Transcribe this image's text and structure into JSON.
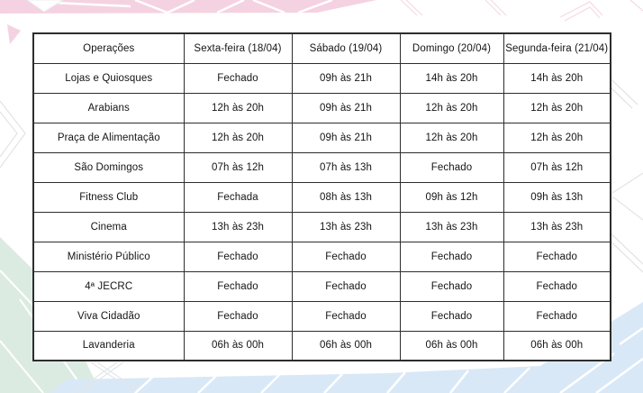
{
  "table": {
    "columns": [
      "Operações",
      "Sexta-feira (18/04)",
      "Sábado (19/04)",
      "Domingo (20/04)",
      "Segunda-feira (21/04)"
    ],
    "rows": [
      {
        "name": "Lojas e Quiosques",
        "values": [
          "Fechado",
          "09h às 21h",
          "14h às 20h",
          "14h às 20h"
        ]
      },
      {
        "name": "Arabians",
        "values": [
          "12h às 20h",
          "09h às 21h",
          "12h às 20h",
          "12h às 20h"
        ]
      },
      {
        "name": "Praça de Alimentação",
        "values": [
          "12h às 20h",
          "09h às 21h",
          "12h às 20h",
          "12h às 20h"
        ]
      },
      {
        "name": "São Domingos",
        "values": [
          "07h às 12h",
          "07h às 13h",
          "Fechado",
          "07h às 12h"
        ]
      },
      {
        "name": "Fitness Club",
        "values": [
          "Fechada",
          "08h às 13h",
          "09h às 12h",
          "09h às 13h"
        ]
      },
      {
        "name": "Cinema",
        "values": [
          "13h às 23h",
          "13h às 23h",
          "13h às 23h",
          "13h às 23h"
        ]
      },
      {
        "name": "Ministério Público",
        "values": [
          "Fechado",
          "Fechado",
          "Fechado",
          "Fechado"
        ]
      },
      {
        "name": "4ª JECRC",
        "values": [
          "Fechado",
          "Fechado",
          "Fechado",
          "Fechado"
        ]
      },
      {
        "name": "Viva Cidadão",
        "values": [
          "Fechado",
          "Fechado",
          "Fechado",
          "Fechado"
        ]
      },
      {
        "name": "Lavanderia",
        "values": [
          "06h às 00h",
          "06h às 00h",
          "06h às 00h",
          "06h às 00h"
        ]
      }
    ]
  },
  "decoration": {
    "pink": "#f5d2e1",
    "green": "#dcebe2",
    "blue": "#d9e8f7",
    "white_line": "#ffffff",
    "gray_line": "#dedede"
  }
}
